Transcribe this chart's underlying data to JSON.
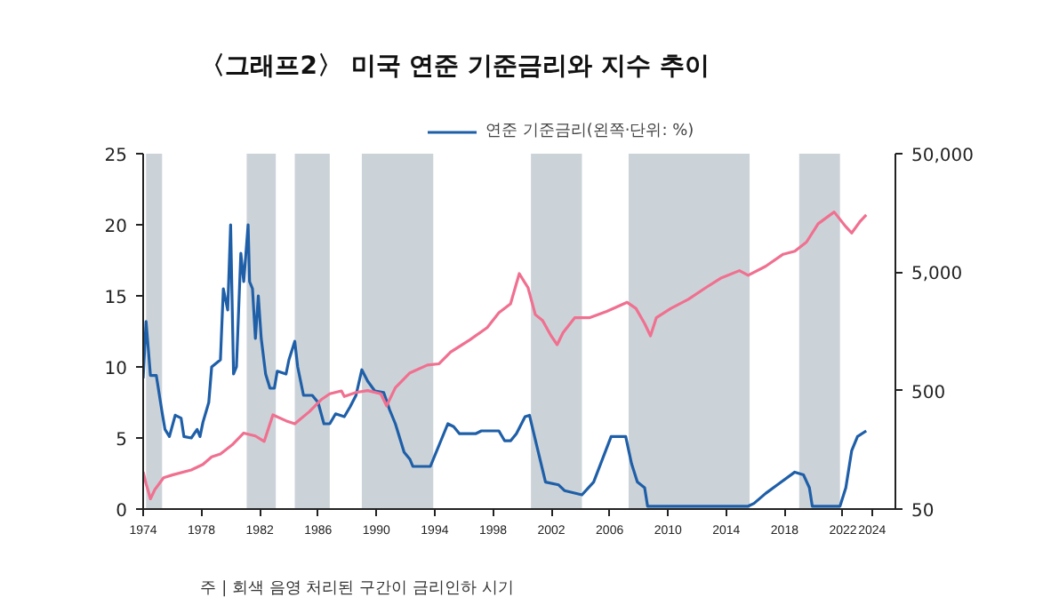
{
  "chart_data": {
    "type": "line",
    "title": "〈그래프2〉 미국 연준 기준금리와 지수 추이",
    "annotations": [
      "주 | 회색 음영 처리된 구간이 금리인하 시기"
    ],
    "xlim": [
      1974,
      2025.6
    ],
    "xticks": [
      1974,
      1978,
      1982,
      1986,
      1990,
      1994,
      1998,
      2002,
      2006,
      2010,
      2014,
      2018,
      2022,
      2024
    ],
    "ylim": [
      0,
      25
    ],
    "yticks": [
      0,
      5,
      10,
      15,
      20,
      25
    ],
    "y2lim": [
      50,
      50000
    ],
    "y2ticks": [
      {
        "value": 50,
        "label": "50"
      },
      {
        "value": 500,
        "label": "500"
      },
      {
        "value": 5000,
        "label": "5,000"
      },
      {
        "value": 50000,
        "label": "50,000"
      }
    ],
    "log": "y2",
    "grid": false,
    "legend": "top",
    "line_style": "solid",
    "bands": [
      {
        "axis": "x",
        "from": 1974.2,
        "to": 1975.3,
        "color": "#ccd3d8"
      },
      {
        "axis": "x",
        "from": 1981.1,
        "to": 1983.1,
        "color": "#ccd3d8"
      },
      {
        "axis": "x",
        "from": 1984.4,
        "to": 1986.8,
        "color": "#ccd3d8"
      },
      {
        "axis": "x",
        "from": 1989.0,
        "to": 1993.9,
        "color": "#ccd3d8"
      },
      {
        "axis": "x",
        "from": 2000.6,
        "to": 2004.1,
        "color": "#ccd3d8"
      },
      {
        "axis": "x",
        "from": 2007.3,
        "to": 2015.6,
        "color": "#ccd3d8"
      },
      {
        "axis": "x",
        "from": 2019.0,
        "to": 2021.8,
        "color": "#ccd3d8"
      }
    ],
    "series": [
      {
        "name": "연준 기준금리(왼쪽·단위: %)",
        "color": "#1f5fa8",
        "x": [
          1974.0,
          1974.2,
          1974.5,
          1974.9,
          1975.3,
          1975.5,
          1975.8,
          1976.2,
          1976.6,
          1976.8,
          1977.3,
          1977.7,
          1977.9,
          1978.1,
          1978.5,
          1978.7,
          1979.3,
          1979.5,
          1979.8,
          1980.0,
          1980.2,
          1980.4,
          1980.7,
          1980.9,
          1981.2,
          1981.3,
          1981.5,
          1981.7,
          1981.9,
          1982.1,
          1982.4,
          1982.7,
          1983.0,
          1983.2,
          1983.8,
          1984.0,
          1984.4,
          1984.6,
          1984.8,
          1985.0,
          1985.6,
          1986.0,
          1986.4,
          1986.8,
          1987.2,
          1987.8,
          1988.2,
          1988.6,
          1989.0,
          1989.4,
          1989.9,
          1990.5,
          1990.9,
          1991.3,
          1991.9,
          1992.3,
          1992.5,
          1993.7,
          1993.9,
          1994.3,
          1994.7,
          1994.9,
          1995.3,
          1995.7,
          1996.8,
          1997.2,
          1998.4,
          1998.8,
          1999.2,
          1999.6,
          2000.2,
          2000.5,
          2000.8,
          2001.2,
          2001.6,
          2002.5,
          2002.9,
          2004.1,
          2004.9,
          2006.1,
          2007.1,
          2007.5,
          2007.9,
          2008.4,
          2008.6,
          2015.5,
          2015.9,
          2016.7,
          2017.5,
          2018.7,
          2019.3,
          2019.7,
          2019.9,
          2021.8,
          2022.2,
          2022.6,
          2023.0,
          2023.6
        ],
        "values": [
          9.2,
          13.2,
          9.4,
          9.4,
          6.8,
          5.6,
          5.1,
          6.6,
          6.4,
          5.1,
          5.0,
          5.6,
          5.1,
          6.1,
          7.5,
          10.0,
          10.5,
          15.5,
          14.0,
          20.0,
          9.5,
          10.0,
          18.0,
          16.0,
          20.0,
          16.0,
          15.5,
          12.0,
          15.0,
          12.0,
          9.5,
          8.5,
          8.5,
          9.7,
          9.5,
          10.5,
          11.8,
          10.0,
          9.0,
          8.0,
          8.0,
          7.5,
          6.0,
          6.0,
          6.7,
          6.5,
          7.2,
          8.0,
          9.8,
          9.0,
          8.3,
          8.2,
          7.0,
          6.0,
          4.0,
          3.5,
          3.0,
          3.0,
          3.5,
          4.5,
          5.5,
          6.0,
          5.8,
          5.3,
          5.3,
          5.5,
          5.5,
          4.8,
          4.8,
          5.3,
          6.5,
          6.6,
          5.3,
          3.6,
          1.9,
          1.7,
          1.3,
          1.0,
          1.9,
          5.1,
          5.1,
          3.2,
          1.9,
          1.5,
          0.2,
          0.2,
          0.4,
          1.1,
          1.7,
          2.6,
          2.4,
          1.5,
          0.2,
          0.2,
          1.5,
          4.1,
          5.1,
          5.5
        ]
      },
      {
        "color": "#f07090",
        "axis": "y2",
        "x": [
          1974.0,
          1974.2,
          1974.5,
          1974.8,
          1975.4,
          1976.0,
          1977.3,
          1978.1,
          1978.7,
          1979.3,
          1980.1,
          1980.9,
          1981.7,
          1982.3,
          1982.9,
          1983.8,
          1984.4,
          1985.4,
          1986.2,
          1986.8,
          1987.6,
          1987.8,
          1988.6,
          1989.4,
          1990.3,
          1990.7,
          1991.3,
          1992.3,
          1993.5,
          1994.3,
          1995.1,
          1996.4,
          1997.6,
          1998.4,
          1999.2,
          1999.8,
          2000.2,
          2000.4,
          2000.9,
          2001.4,
          2002.0,
          2002.4,
          2002.8,
          2003.6,
          2004.6,
          2005.8,
          2007.2,
          2007.8,
          2008.4,
          2008.8,
          2009.2,
          2010.2,
          2011.4,
          2012.6,
          2013.6,
          2014.9,
          2015.5,
          2016.7,
          2017.9,
          2018.7,
          2019.5,
          2020.3,
          2021.4,
          2022.2,
          2022.6,
          2023.2,
          2023.6
        ],
        "values": [
          103,
          82,
          61,
          73,
          92,
          97,
          107,
          119,
          138,
          146,
          174,
          219,
          207,
          186,
          312,
          278,
          262,
          332,
          418,
          470,
          497,
          446,
          482,
          500,
          470,
          372,
          529,
          706,
          822,
          842,
          1060,
          1340,
          1700,
          2270,
          2700,
          4860,
          4050,
          3700,
          2190,
          1950,
          1440,
          1220,
          1540,
          2060,
          2060,
          2330,
          2780,
          2470,
          1840,
          1450,
          2060,
          2470,
          2950,
          3700,
          4430,
          5150,
          4700,
          5600,
          7080,
          7520,
          8970,
          12800,
          16100,
          12100,
          10700,
          13500,
          15200
        ]
      }
    ]
  }
}
